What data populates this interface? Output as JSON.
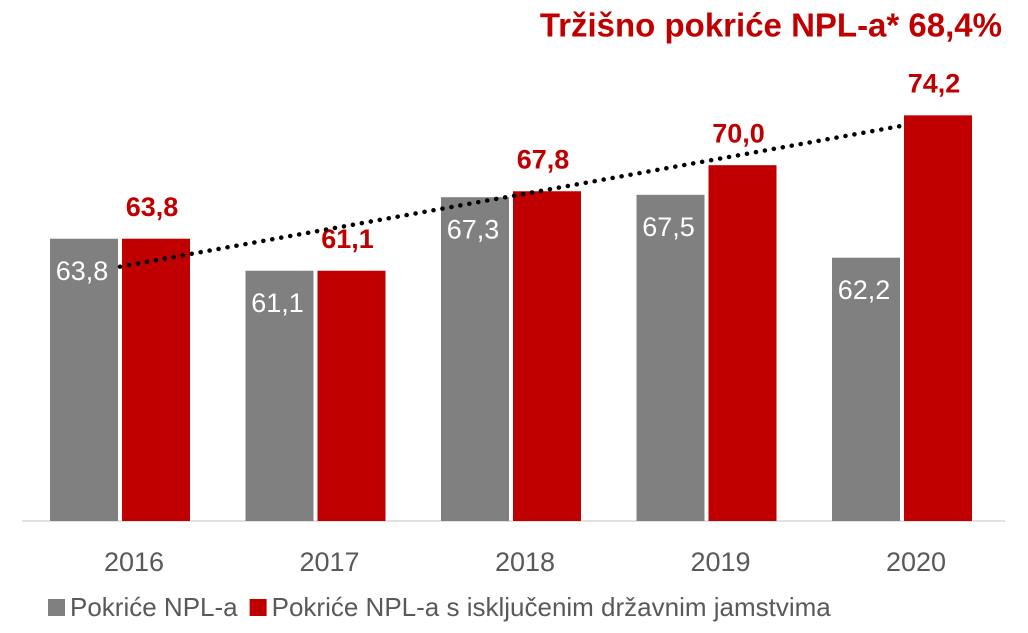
{
  "chart_data": {
    "type": "bar",
    "title": "Tržišno pokriće NPL-a* 68,4%",
    "categories": [
      "2016",
      "2017",
      "2018",
      "2019",
      "2020"
    ],
    "series": [
      {
        "name": "Pokriće NPL-a",
        "color": "#808080",
        "values": [
          63.8,
          61.1,
          67.3,
          67.5,
          62.2
        ],
        "value_labels": [
          "63,8",
          "61,1",
          "67,3",
          "67,5",
          "62,2"
        ]
      },
      {
        "name": "Pokriće NPL-a s isključenim državnim jamstvima",
        "color": "#c00000",
        "values": [
          63.8,
          61.1,
          67.8,
          70.0,
          74.2
        ],
        "value_labels": [
          "63,8",
          "61,1",
          "67,8",
          "70,0",
          "74,2"
        ],
        "trendline": "linear"
      }
    ],
    "ylim": [
      40,
      76
    ],
    "legend": "bottom"
  }
}
